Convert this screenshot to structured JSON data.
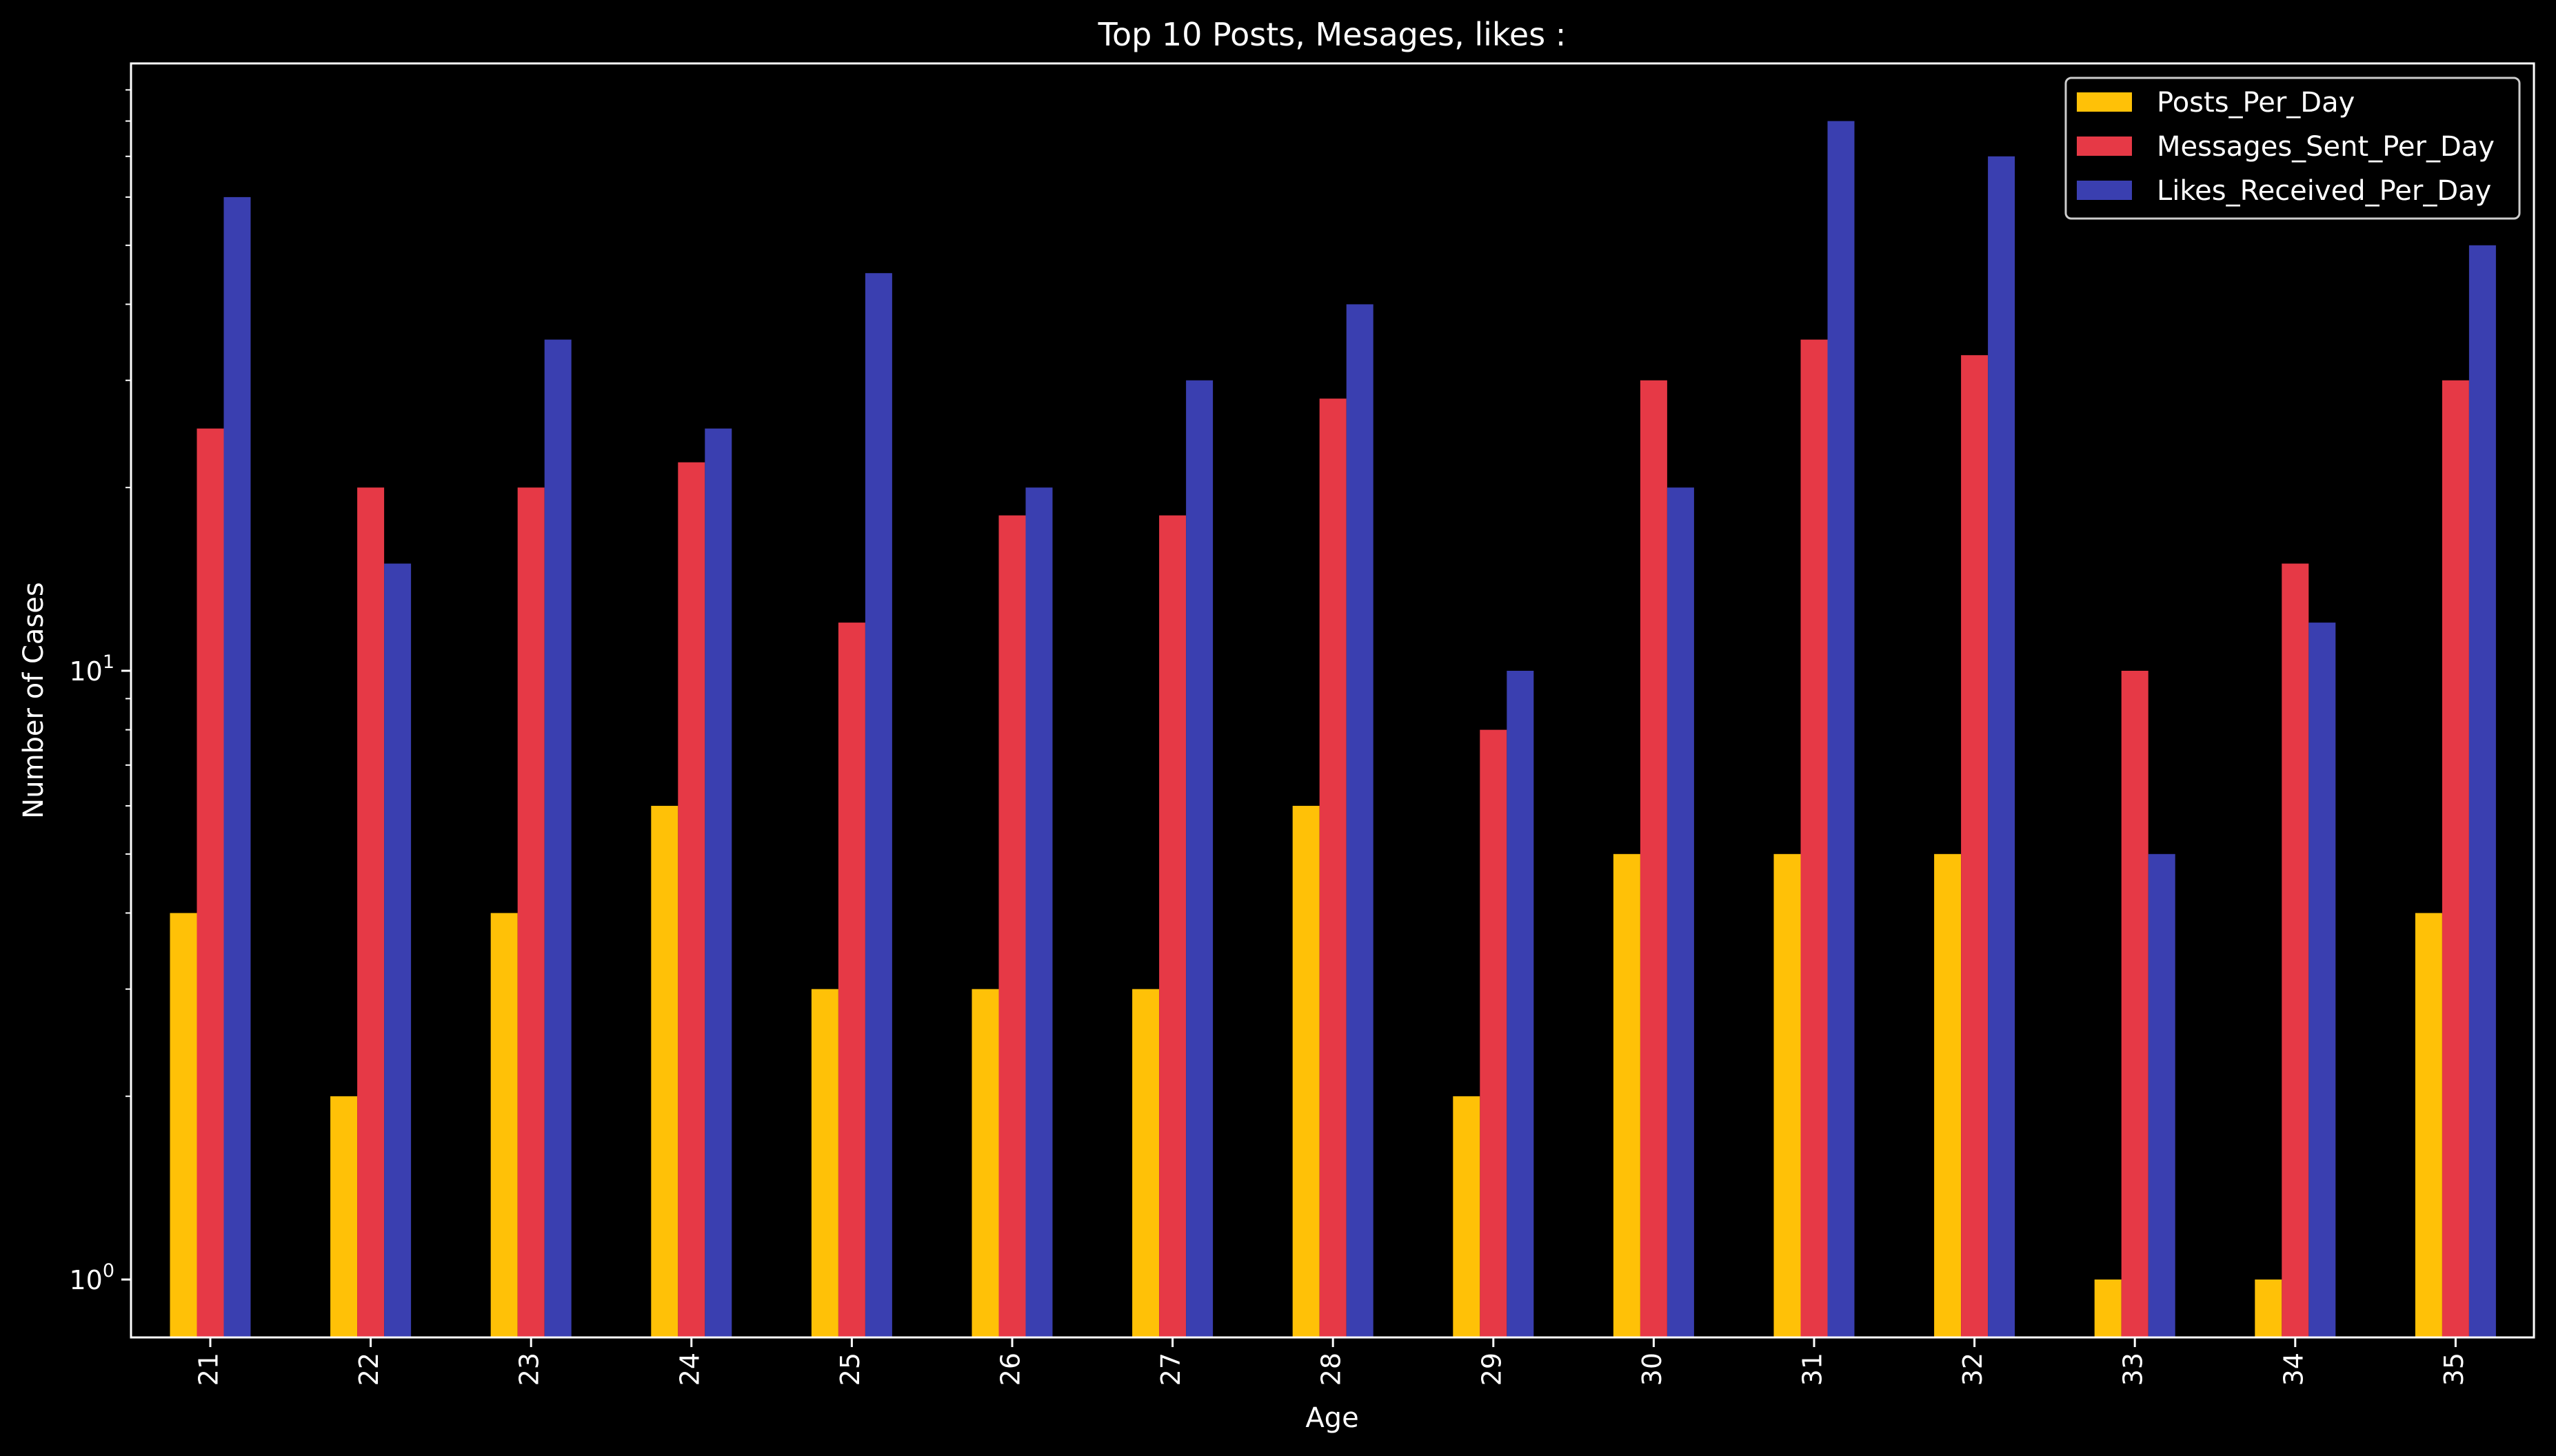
{
  "chart_data": {
    "type": "bar",
    "title": "Top 10 Posts, Mesages, likes :",
    "xlabel": "Age",
    "ylabel": "Number of Cases",
    "yscale": "log",
    "ylim": [
      0.9,
      90
    ],
    "yticks": [
      {
        "value": 1,
        "base": "10",
        "exp": "0"
      },
      {
        "value": 10,
        "base": "10",
        "exp": "1"
      }
    ],
    "categories": [
      "21",
      "22",
      "23",
      "24",
      "25",
      "26",
      "27",
      "28",
      "29",
      "30",
      "31",
      "32",
      "33",
      "34",
      "35"
    ],
    "series": [
      {
        "name": "Posts_Per_Day",
        "color": "#ffc107",
        "values": [
          4,
          2,
          4,
          6,
          3,
          3,
          3,
          6,
          2,
          5,
          5,
          5,
          1,
          1,
          4
        ]
      },
      {
        "name": "Messages_Sent_Per_Day",
        "color": "#e63946",
        "values": [
          25,
          20,
          20,
          22,
          12,
          18,
          18,
          28,
          8,
          30,
          35,
          33,
          10,
          15,
          30
        ]
      },
      {
        "name": "Likes_Received_Per_Day",
        "color": "#3a3fb0",
        "values": [
          60,
          15,
          35,
          25,
          45,
          20,
          30,
          40,
          10,
          20,
          80,
          70,
          5,
          12,
          50
        ]
      }
    ],
    "grid": false,
    "legend_position": "top-right",
    "background": "#000000",
    "foreground": "#ffffff"
  }
}
